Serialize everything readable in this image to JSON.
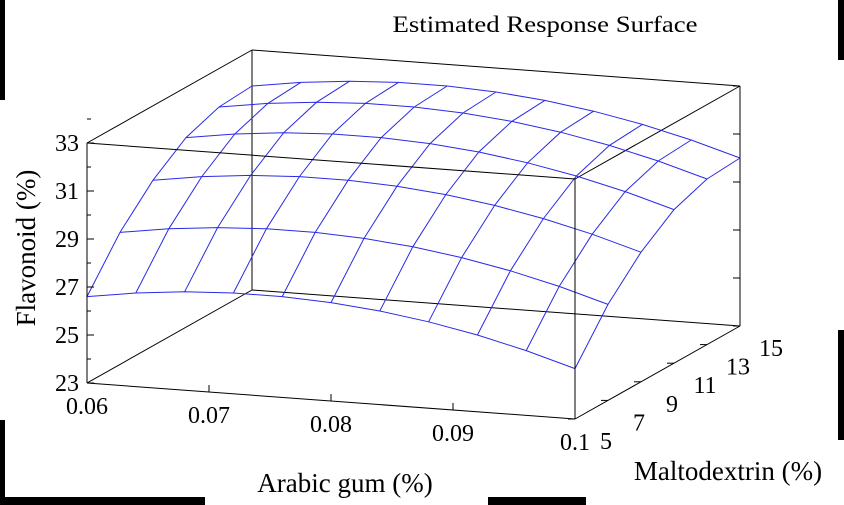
{
  "chart_data": {
    "type": "surface",
    "title": "Estimated Response Surface",
    "xlabel": "Arabic gum (%)",
    "ylabel": "Maltodextrin (%)",
    "zlabel": "Flavonoid (%)",
    "x_ticks": [
      "0.06",
      "0.07",
      "0.08",
      "0.09",
      "0.1"
    ],
    "y_ticks": [
      "5",
      "7",
      "9",
      "11",
      "13",
      "15"
    ],
    "z_ticks": [
      "23",
      "25",
      "27",
      "29",
      "31",
      "33"
    ],
    "xlim": [
      0.06,
      0.1
    ],
    "ylim": [
      5,
      15
    ],
    "zlim": [
      23,
      33
    ],
    "x_grid": [
      0.06,
      0.064,
      0.068,
      0.072,
      0.076,
      0.08,
      0.084,
      0.088,
      0.092,
      0.096,
      0.1
    ],
    "y_grid": [
      5,
      7,
      9,
      11,
      13,
      15
    ],
    "z_values": [
      [
        26.6,
        28.5,
        29.9,
        30.9,
        31.4,
        31.5
      ],
      [
        26.9,
        28.8,
        30.2,
        31.2,
        31.7,
        31.8
      ],
      [
        27.1,
        29.0,
        30.4,
        31.4,
        31.9,
        32.0
      ],
      [
        27.2,
        29.1,
        30.5,
        31.5,
        32.0,
        32.1
      ],
      [
        27.2,
        29.1,
        30.5,
        31.5,
        32.0,
        32.1
      ],
      [
        27.1,
        29.0,
        30.4,
        31.4,
        31.9,
        32.0
      ],
      [
        26.9,
        28.8,
        30.2,
        31.2,
        31.7,
        31.8
      ],
      [
        26.6,
        28.5,
        29.9,
        30.9,
        31.4,
        31.5
      ],
      [
        26.2,
        28.1,
        29.5,
        30.5,
        31.0,
        31.1
      ],
      [
        25.7,
        27.6,
        29.0,
        30.0,
        30.5,
        30.6
      ],
      [
        25.1,
        27.0,
        28.4,
        29.4,
        29.9,
        30.0
      ]
    ],
    "surface_color": "#2a2ae6",
    "axis_color": "#000000",
    "background": "#ffffff"
  }
}
